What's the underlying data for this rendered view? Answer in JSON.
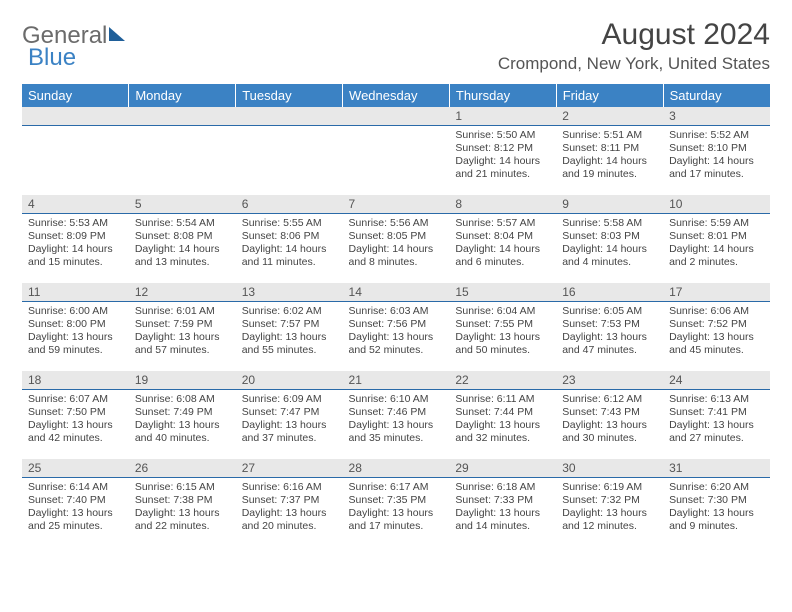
{
  "logo": {
    "text_general": "General",
    "text_blue": "Blue"
  },
  "header": {
    "month_title": "August 2024",
    "location": "Crompond, New York, United States"
  },
  "colors": {
    "header_bg": "#3b82c4",
    "header_text": "#ffffff",
    "daynum_bg": "#e8e8e8",
    "daynum_text": "#555555",
    "rule": "#2a6aa8",
    "body_text": "#444444",
    "page_bg": "#ffffff"
  },
  "weekdays": [
    "Sunday",
    "Monday",
    "Tuesday",
    "Wednesday",
    "Thursday",
    "Friday",
    "Saturday"
  ],
  "label_sunrise": "Sunrise:",
  "label_sunset": "Sunset:",
  "label_daylight": "Daylight:",
  "weeks": [
    [
      null,
      null,
      null,
      null,
      {
        "day": "1",
        "sunrise": "5:50 AM",
        "sunset": "8:12 PM",
        "daylight": "14 hours and 21 minutes."
      },
      {
        "day": "2",
        "sunrise": "5:51 AM",
        "sunset": "8:11 PM",
        "daylight": "14 hours and 19 minutes."
      },
      {
        "day": "3",
        "sunrise": "5:52 AM",
        "sunset": "8:10 PM",
        "daylight": "14 hours and 17 minutes."
      }
    ],
    [
      {
        "day": "4",
        "sunrise": "5:53 AM",
        "sunset": "8:09 PM",
        "daylight": "14 hours and 15 minutes."
      },
      {
        "day": "5",
        "sunrise": "5:54 AM",
        "sunset": "8:08 PM",
        "daylight": "14 hours and 13 minutes."
      },
      {
        "day": "6",
        "sunrise": "5:55 AM",
        "sunset": "8:06 PM",
        "daylight": "14 hours and 11 minutes."
      },
      {
        "day": "7",
        "sunrise": "5:56 AM",
        "sunset": "8:05 PM",
        "daylight": "14 hours and 8 minutes."
      },
      {
        "day": "8",
        "sunrise": "5:57 AM",
        "sunset": "8:04 PM",
        "daylight": "14 hours and 6 minutes."
      },
      {
        "day": "9",
        "sunrise": "5:58 AM",
        "sunset": "8:03 PM",
        "daylight": "14 hours and 4 minutes."
      },
      {
        "day": "10",
        "sunrise": "5:59 AM",
        "sunset": "8:01 PM",
        "daylight": "14 hours and 2 minutes."
      }
    ],
    [
      {
        "day": "11",
        "sunrise": "6:00 AM",
        "sunset": "8:00 PM",
        "daylight": "13 hours and 59 minutes."
      },
      {
        "day": "12",
        "sunrise": "6:01 AM",
        "sunset": "7:59 PM",
        "daylight": "13 hours and 57 minutes."
      },
      {
        "day": "13",
        "sunrise": "6:02 AM",
        "sunset": "7:57 PM",
        "daylight": "13 hours and 55 minutes."
      },
      {
        "day": "14",
        "sunrise": "6:03 AM",
        "sunset": "7:56 PM",
        "daylight": "13 hours and 52 minutes."
      },
      {
        "day": "15",
        "sunrise": "6:04 AM",
        "sunset": "7:55 PM",
        "daylight": "13 hours and 50 minutes."
      },
      {
        "day": "16",
        "sunrise": "6:05 AM",
        "sunset": "7:53 PM",
        "daylight": "13 hours and 47 minutes."
      },
      {
        "day": "17",
        "sunrise": "6:06 AM",
        "sunset": "7:52 PM",
        "daylight": "13 hours and 45 minutes."
      }
    ],
    [
      {
        "day": "18",
        "sunrise": "6:07 AM",
        "sunset": "7:50 PM",
        "daylight": "13 hours and 42 minutes."
      },
      {
        "day": "19",
        "sunrise": "6:08 AM",
        "sunset": "7:49 PM",
        "daylight": "13 hours and 40 minutes."
      },
      {
        "day": "20",
        "sunrise": "6:09 AM",
        "sunset": "7:47 PM",
        "daylight": "13 hours and 37 minutes."
      },
      {
        "day": "21",
        "sunrise": "6:10 AM",
        "sunset": "7:46 PM",
        "daylight": "13 hours and 35 minutes."
      },
      {
        "day": "22",
        "sunrise": "6:11 AM",
        "sunset": "7:44 PM",
        "daylight": "13 hours and 32 minutes."
      },
      {
        "day": "23",
        "sunrise": "6:12 AM",
        "sunset": "7:43 PM",
        "daylight": "13 hours and 30 minutes."
      },
      {
        "day": "24",
        "sunrise": "6:13 AM",
        "sunset": "7:41 PM",
        "daylight": "13 hours and 27 minutes."
      }
    ],
    [
      {
        "day": "25",
        "sunrise": "6:14 AM",
        "sunset": "7:40 PM",
        "daylight": "13 hours and 25 minutes."
      },
      {
        "day": "26",
        "sunrise": "6:15 AM",
        "sunset": "7:38 PM",
        "daylight": "13 hours and 22 minutes."
      },
      {
        "day": "27",
        "sunrise": "6:16 AM",
        "sunset": "7:37 PM",
        "daylight": "13 hours and 20 minutes."
      },
      {
        "day": "28",
        "sunrise": "6:17 AM",
        "sunset": "7:35 PM",
        "daylight": "13 hours and 17 minutes."
      },
      {
        "day": "29",
        "sunrise": "6:18 AM",
        "sunset": "7:33 PM",
        "daylight": "13 hours and 14 minutes."
      },
      {
        "day": "30",
        "sunrise": "6:19 AM",
        "sunset": "7:32 PM",
        "daylight": "13 hours and 12 minutes."
      },
      {
        "day": "31",
        "sunrise": "6:20 AM",
        "sunset": "7:30 PM",
        "daylight": "13 hours and 9 minutes."
      }
    ]
  ]
}
